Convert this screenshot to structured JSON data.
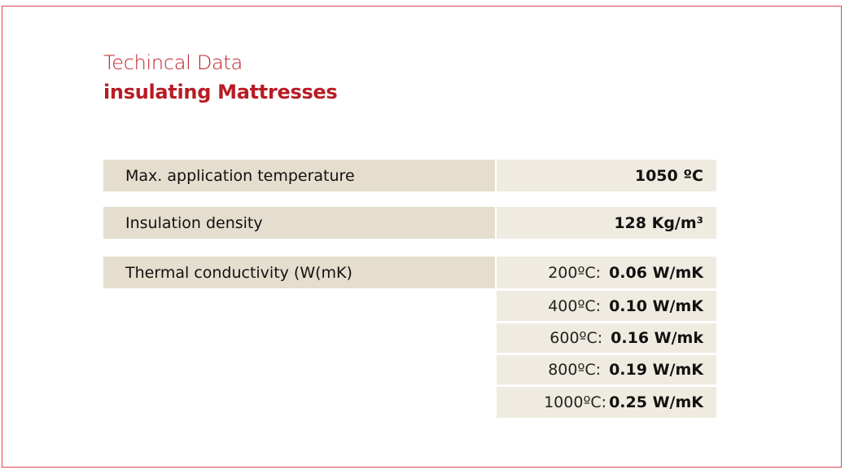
{
  "header": {
    "title": "Techincal Data",
    "subtitle": "insulating Mattresses"
  },
  "rows": [
    {
      "label": "Max. application temperature",
      "value": "1050 ºC"
    },
    {
      "label": "Insulation density",
      "value": "128 Kg/m³"
    },
    {
      "label": "Thermal conductivity (W(mK)",
      "values": [
        {
          "temp": "200ºC:",
          "value": "0.06 W/mK"
        },
        {
          "temp": "400ºC:",
          "value": "0.10 W/mK"
        },
        {
          "temp": "600ºC:",
          "value": "0.16 W/mk"
        },
        {
          "temp": "800ºC:",
          "value": "0.19 W/mK"
        },
        {
          "temp": "1000ºC:",
          "value": "0.25 W/mK"
        }
      ]
    }
  ],
  "colors": {
    "accent": "#c0202a",
    "label_bg": "#e5ddcd",
    "value_bg": "#f0ebe0"
  }
}
